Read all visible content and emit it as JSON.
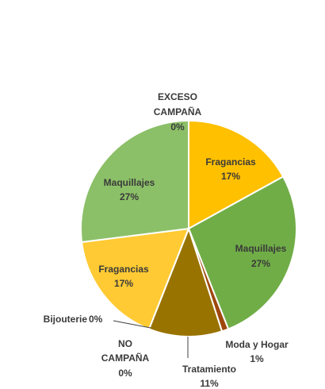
{
  "chart_data": {
    "type": "pie",
    "title": "",
    "slices": [
      {
        "label": "EXCESO CAMPAÑA",
        "value": 0,
        "percent_label": "0%",
        "color": "#F2C12E"
      },
      {
        "label": "Fragancias",
        "value": 17,
        "percent_label": "17%",
        "color": "#FFC000"
      },
      {
        "label": "Maquillajes",
        "value": 27,
        "percent_label": "27%",
        "color": "#70AD47"
      },
      {
        "label": "Moda y Hogar",
        "value": 1,
        "percent_label": "1%",
        "color": "#9E480E"
      },
      {
        "label": "Tratamiento",
        "value": 11,
        "percent_label": "11%",
        "color": "#997300"
      },
      {
        "label": "NO CAMPAÑA",
        "value": 0,
        "percent_label": "0%",
        "color": "#C9A227"
      },
      {
        "label": "Bijouterie",
        "value": 0,
        "percent_label": "0%",
        "color": "#E0B830"
      },
      {
        "label": "Fragancias",
        "value": 17,
        "percent_label": "17%",
        "color": "#FFCA33"
      },
      {
        "label": "Maquillajes",
        "value": 27,
        "percent_label": "27%",
        "color": "#8CC068"
      }
    ],
    "legend": "none"
  }
}
